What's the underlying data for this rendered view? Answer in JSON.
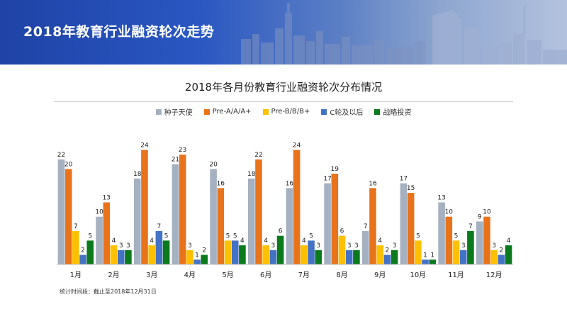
{
  "banner": {
    "title": "2018年教育行业融资轮次走势"
  },
  "colors": {
    "种子天使": "#a5b0c0",
    "Pre-A/A/A+": "#e8731a",
    "Pre-B/B/B+": "#ffc000",
    "C轮及以后": "#4472c4",
    "战略投资": "#0a7a1c"
  },
  "chart_data": {
    "type": "bar",
    "title": "2018年各月份教育行业融资轮次分布情况",
    "categories": [
      "1月",
      "2月",
      "3月",
      "4月",
      "5月",
      "6月",
      "7月",
      "8月",
      "9月",
      "10月",
      "11月",
      "12月"
    ],
    "series": [
      {
        "name": "种子天使",
        "values": [
          22,
          10,
          18,
          21,
          20,
          18,
          16,
          17,
          7,
          17,
          13,
          9
        ]
      },
      {
        "name": "Pre-A/A/A+",
        "values": [
          20,
          13,
          24,
          23,
          16,
          22,
          24,
          19,
          16,
          15,
          10,
          10
        ]
      },
      {
        "name": "Pre-B/B/B+",
        "values": [
          7,
          4,
          4,
          3,
          5,
          4,
          4,
          6,
          4,
          5,
          5,
          3
        ]
      },
      {
        "name": "C轮及以后",
        "values": [
          2,
          3,
          7,
          1,
          5,
          3,
          5,
          3,
          2,
          1,
          3,
          2
        ]
      },
      {
        "name": "战略投资",
        "values": [
          5,
          3,
          5,
          2,
          4,
          6,
          3,
          3,
          3,
          1,
          7,
          4
        ]
      }
    ],
    "ylim": [
      0,
      26
    ],
    "legend": "top",
    "grid": false
  },
  "footnote": "统计时间段：截止至2018年12月31日"
}
